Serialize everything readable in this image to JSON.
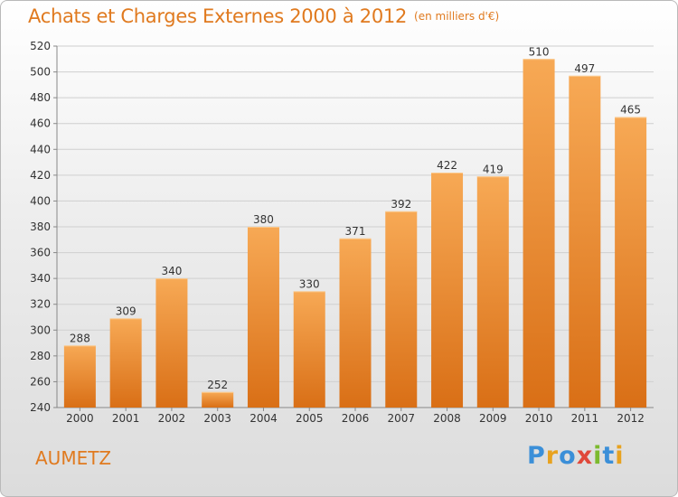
{
  "header": {
    "title": "Achats et Charges Externes 2000 à 2012",
    "unit": "(en milliers d'€)"
  },
  "footer": {
    "commune": "AUMETZ",
    "logo": "Proxiti"
  },
  "colors": {
    "bar_top": "#f7a955",
    "bar_bottom": "#d96f16",
    "title": "#e07a1f"
  },
  "chart_data": {
    "type": "bar",
    "title": "Achats et Charges Externes 2000 à 2012",
    "subtitle": "(en milliers d'€)",
    "categories": [
      "2000",
      "2001",
      "2002",
      "2003",
      "2004",
      "2005",
      "2006",
      "2007",
      "2008",
      "2009",
      "2010",
      "2011",
      "2012"
    ],
    "values": [
      288,
      309,
      340,
      252,
      380,
      330,
      371,
      392,
      422,
      419,
      510,
      497,
      465
    ],
    "ylim": [
      240,
      520
    ],
    "yticks": [
      240,
      260,
      280,
      300,
      320,
      340,
      360,
      380,
      400,
      420,
      440,
      460,
      480,
      500,
      520
    ],
    "grid": true,
    "legend": "none"
  }
}
